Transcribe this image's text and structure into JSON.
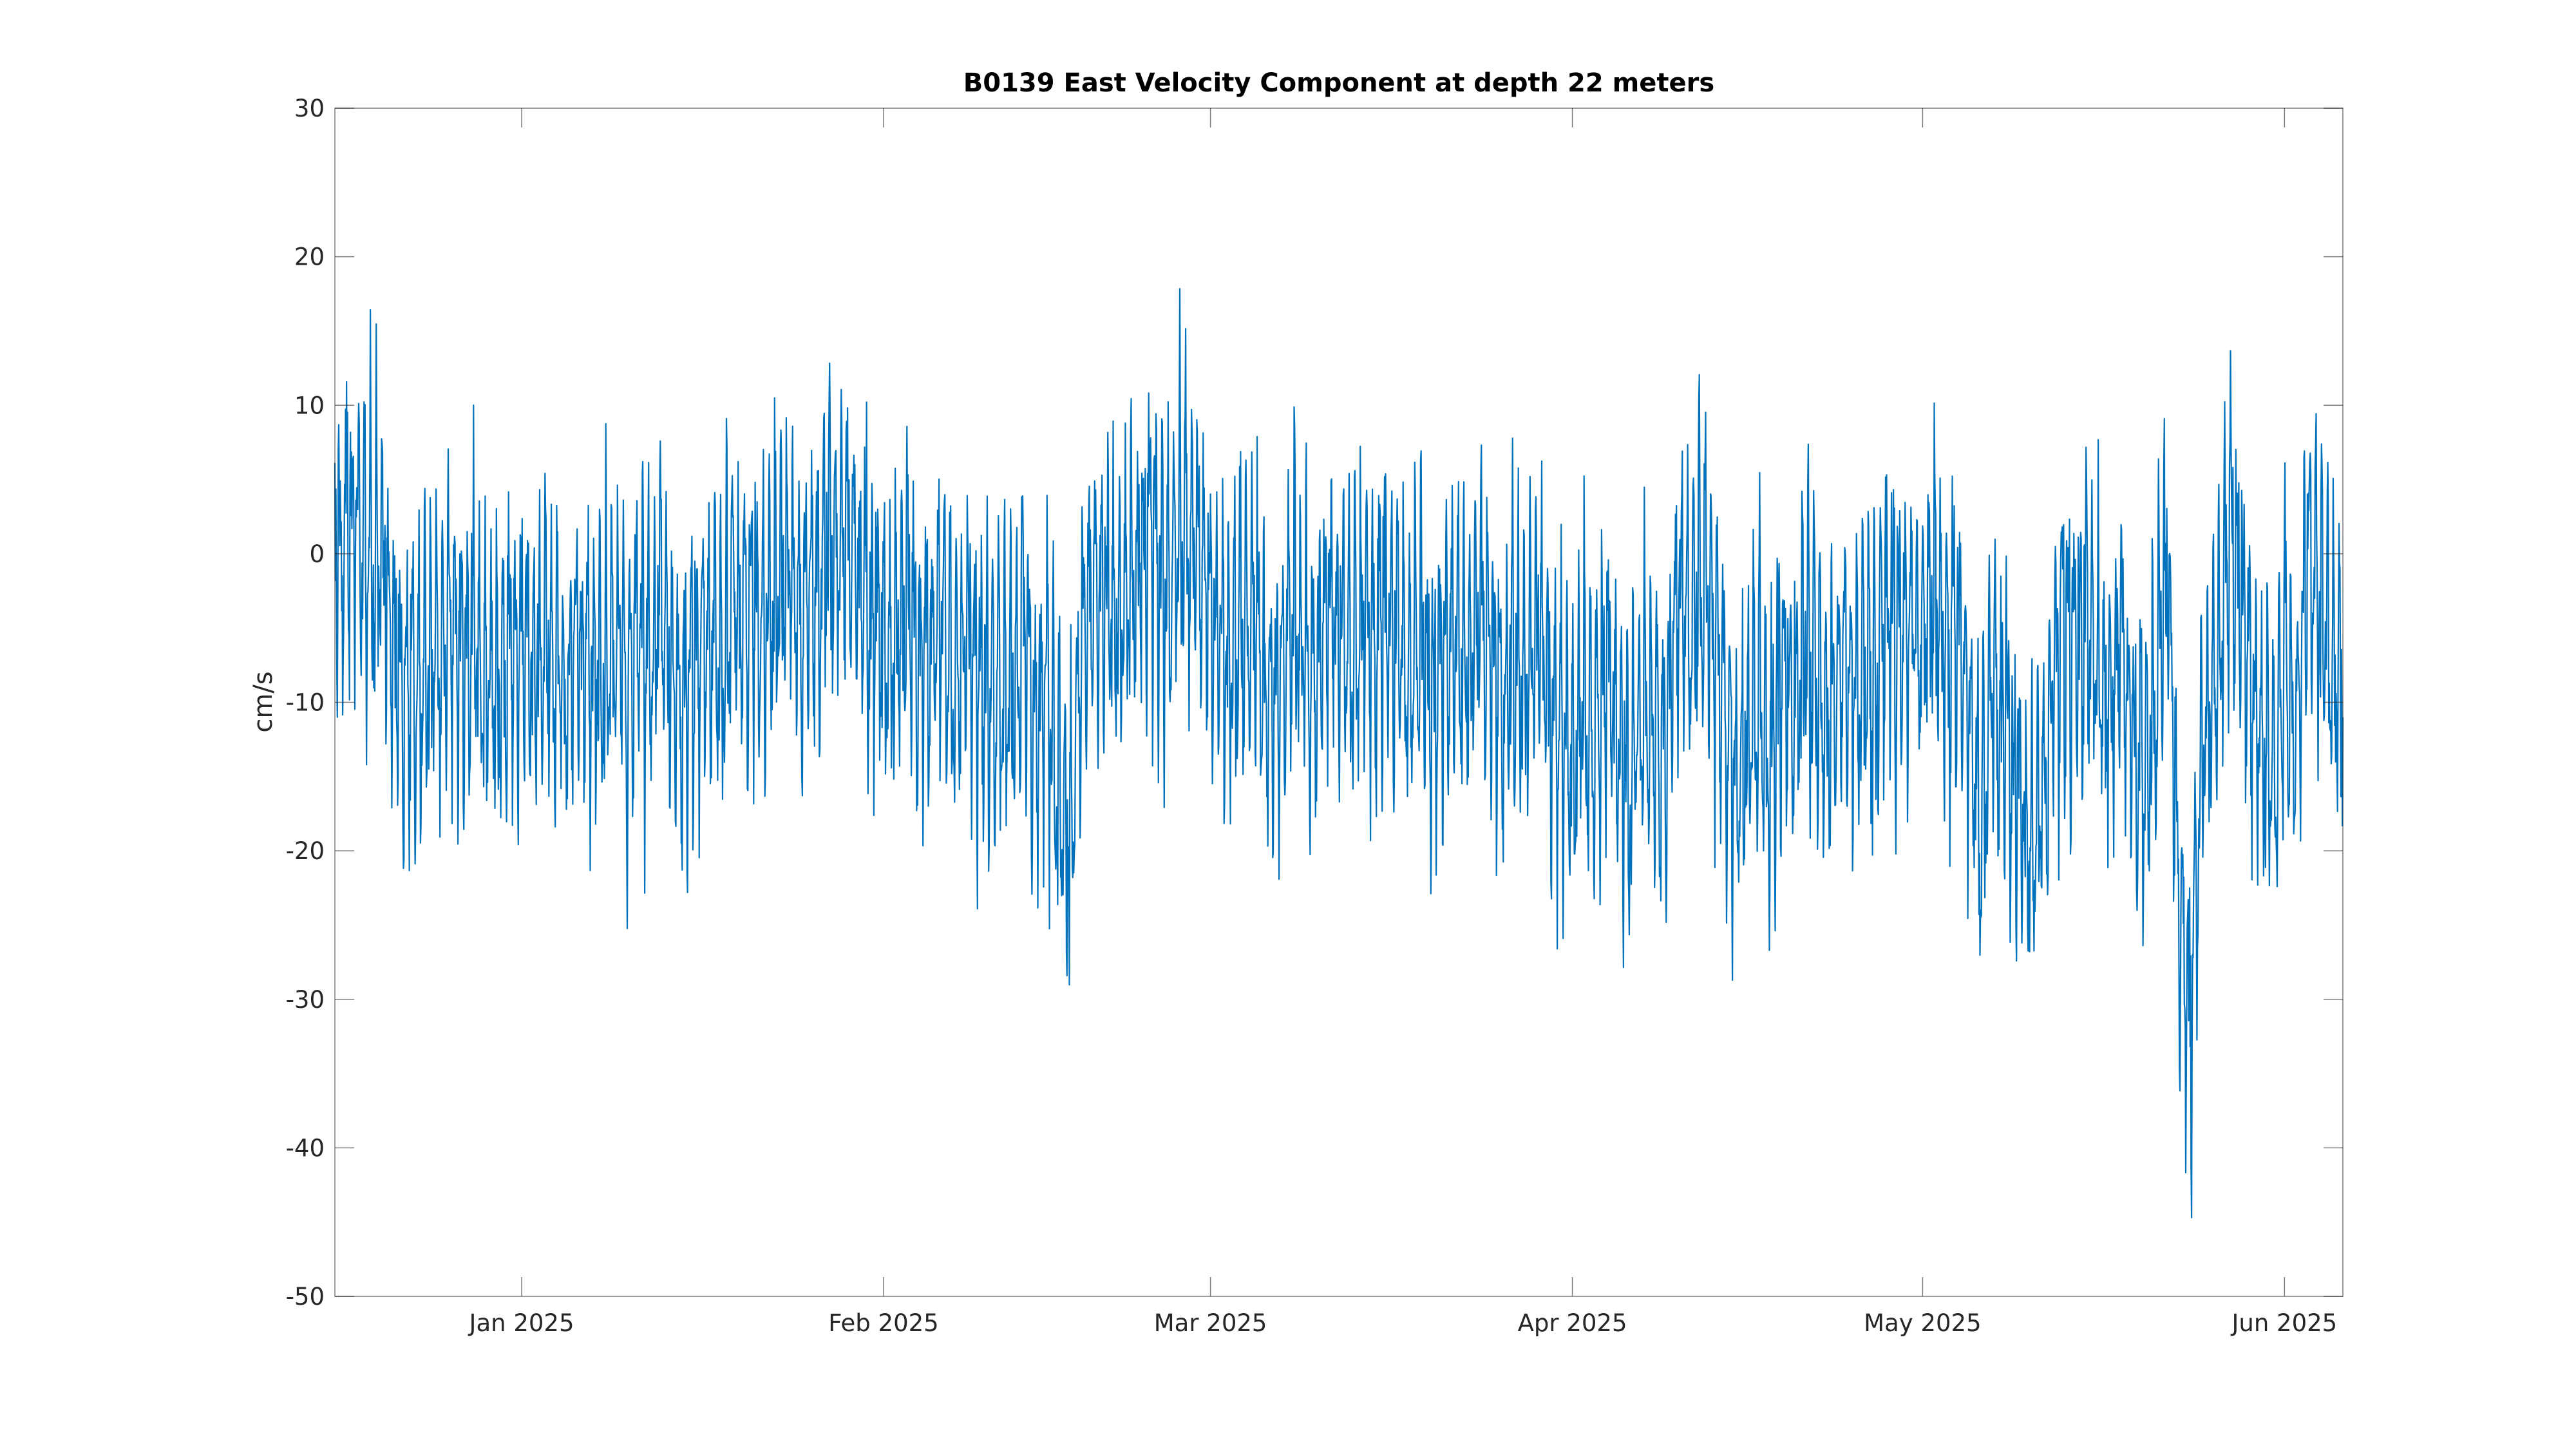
{
  "chart_data": {
    "type": "line",
    "title": "B0139 East Velocity Component at depth 22 meters",
    "xlabel": "",
    "ylabel": "cm/s",
    "x_range": [
      "2024-12-16",
      "2025-06-06"
    ],
    "ylim": [
      -50,
      30
    ],
    "yticks": [
      -50,
      -40,
      -30,
      -20,
      -10,
      0,
      10,
      20,
      30
    ],
    "xticks": [
      {
        "date": "2025-01-01",
        "label": "Jan 2025"
      },
      {
        "date": "2025-02-01",
        "label": "Feb 2025"
      },
      {
        "date": "2025-03-01",
        "label": "Mar 2025"
      },
      {
        "date": "2025-04-01",
        "label": "Apr 2025"
      },
      {
        "date": "2025-05-01",
        "label": "May 2025"
      },
      {
        "date": "2025-06-01",
        "label": "Jun 2025"
      }
    ],
    "grid": false,
    "color": "#0072BD",
    "series": [
      {
        "name": "",
        "points": [
          [
            "2024-12-16",
            0.0
          ],
          [
            "2024-12-17",
            1.5
          ],
          [
            "2024-12-18",
            0.5
          ],
          [
            "2024-12-19",
            -1.0
          ],
          [
            "2024-12-20",
            1.0
          ],
          [
            "2024-12-21",
            -7.0
          ],
          [
            "2024-12-22",
            -10.0
          ],
          [
            "2024-12-23",
            -9.0
          ],
          [
            "2024-12-24",
            -8.0
          ],
          [
            "2024-12-25",
            -7.5
          ],
          [
            "2024-12-26",
            -4.0
          ],
          [
            "2024-12-27",
            -7.5
          ],
          [
            "2024-12-28",
            -5.0
          ],
          [
            "2024-12-29",
            -9.0
          ],
          [
            "2024-12-30",
            -8.0
          ],
          [
            "2024-12-31",
            -6.5
          ],
          [
            "2025-01-01",
            -6.5
          ],
          [
            "2025-01-02",
            -7.5
          ],
          [
            "2025-01-03",
            -5.0
          ],
          [
            "2025-01-04",
            -8.0
          ],
          [
            "2025-01-05",
            -9.0
          ],
          [
            "2025-01-06",
            -5.0
          ],
          [
            "2025-01-07",
            -6.5
          ],
          [
            "2025-01-08",
            -10.0
          ],
          [
            "2025-01-09",
            -5.0
          ],
          [
            "2025-01-10",
            -9.0
          ],
          [
            "2025-01-11",
            -5.0
          ],
          [
            "2025-01-12",
            -7.5
          ],
          [
            "2025-01-13",
            -3.5
          ],
          [
            "2025-01-14",
            -9.0
          ],
          [
            "2025-01-15",
            -10.0
          ],
          [
            "2025-01-16",
            -8.0
          ],
          [
            "2025-01-17",
            -5.0
          ],
          [
            "2025-01-18",
            -6.5
          ],
          [
            "2025-01-19",
            -2.5
          ],
          [
            "2025-01-20",
            -4.0
          ],
          [
            "2025-01-21",
            -3.0
          ],
          [
            "2025-01-22",
            -5.0
          ],
          [
            "2025-01-23",
            -2.0
          ],
          [
            "2025-01-24",
            0.5
          ],
          [
            "2025-01-25",
            -4.5
          ],
          [
            "2025-01-26",
            -2.5
          ],
          [
            "2025-01-27",
            0.0
          ],
          [
            "2025-01-28",
            -0.5
          ],
          [
            "2025-01-29",
            1.0
          ],
          [
            "2025-01-30",
            -1.5
          ],
          [
            "2025-01-31",
            -3.5
          ],
          [
            "2025-02-01",
            -5.0
          ],
          [
            "2025-02-02",
            -8.0
          ],
          [
            "2025-02-03",
            -2.5
          ],
          [
            "2025-02-04",
            -6.0
          ],
          [
            "2025-02-05",
            -7.5
          ],
          [
            "2025-02-06",
            -4.0
          ],
          [
            "2025-02-07",
            -9.0
          ],
          [
            "2025-02-08",
            -3.0
          ],
          [
            "2025-02-09",
            -8.0
          ],
          [
            "2025-02-10",
            -10.0
          ],
          [
            "2025-02-11",
            -7.5
          ],
          [
            "2025-02-12",
            -9.0
          ],
          [
            "2025-02-13",
            -5.0
          ],
          [
            "2025-02-14",
            -12.0
          ],
          [
            "2025-02-15",
            -9.0
          ],
          [
            "2025-02-16",
            -15.0
          ],
          [
            "2025-02-17",
            -20.0
          ],
          [
            "2025-02-18",
            -6.0
          ],
          [
            "2025-02-19",
            -2.5
          ],
          [
            "2025-02-20",
            -4.0
          ],
          [
            "2025-02-21",
            -5.0
          ],
          [
            "2025-02-22",
            -3.0
          ],
          [
            "2025-02-23",
            -1.0
          ],
          [
            "2025-02-24",
            1.0
          ],
          [
            "2025-02-25",
            -2.0
          ],
          [
            "2025-02-26",
            0.5
          ],
          [
            "2025-02-27",
            2.0
          ],
          [
            "2025-02-28",
            -1.0
          ],
          [
            "2025-03-01",
            -4.0
          ],
          [
            "2025-03-02",
            -6.0
          ],
          [
            "2025-03-03",
            -8.0
          ],
          [
            "2025-03-04",
            -3.0
          ],
          [
            "2025-03-05",
            -5.0
          ],
          [
            "2025-03-06",
            -10.0
          ],
          [
            "2025-03-07",
            -8.0
          ],
          [
            "2025-03-08",
            -4.0
          ],
          [
            "2025-03-09",
            -6.0
          ],
          [
            "2025-03-10",
            -9.0
          ],
          [
            "2025-03-11",
            -3.0
          ],
          [
            "2025-03-12",
            -5.0
          ],
          [
            "2025-03-13",
            -7.5
          ],
          [
            "2025-03-14",
            -4.0
          ],
          [
            "2025-03-15",
            -6.0
          ],
          [
            "2025-03-16",
            -2.5
          ],
          [
            "2025-03-17",
            -6.0
          ],
          [
            "2025-03-18",
            -9.0
          ],
          [
            "2025-03-19",
            -5.0
          ],
          [
            "2025-03-20",
            -10.0
          ],
          [
            "2025-03-21",
            -7.5
          ],
          [
            "2025-03-22",
            -4.0
          ],
          [
            "2025-03-23",
            -9.0
          ],
          [
            "2025-03-24",
            -3.0
          ],
          [
            "2025-03-25",
            -7.5
          ],
          [
            "2025-03-26",
            -10.0
          ],
          [
            "2025-03-27",
            -6.0
          ],
          [
            "2025-03-28",
            -8.0
          ],
          [
            "2025-03-29",
            -4.0
          ],
          [
            "2025-03-30",
            -9.0
          ],
          [
            "2025-03-31",
            -12.0
          ],
          [
            "2025-04-01",
            -15.0
          ],
          [
            "2025-04-02",
            -10.0
          ],
          [
            "2025-04-03",
            -13.0
          ],
          [
            "2025-04-04",
            -8.0
          ],
          [
            "2025-04-05",
            -12.0
          ],
          [
            "2025-04-06",
            -15.0
          ],
          [
            "2025-04-07",
            -10.0
          ],
          [
            "2025-04-08",
            -12.0
          ],
          [
            "2025-04-09",
            -14.0
          ],
          [
            "2025-04-10",
            -2.0
          ],
          [
            "2025-04-11",
            -5.0
          ],
          [
            "2025-04-12",
            -1.0
          ],
          [
            "2025-04-13",
            -3.0
          ],
          [
            "2025-04-14",
            -11.0
          ],
          [
            "2025-04-15",
            -15.0
          ],
          [
            "2025-04-16",
            -13.0
          ],
          [
            "2025-04-17",
            -9.0
          ],
          [
            "2025-04-18",
            -15.0
          ],
          [
            "2025-04-19",
            -7.5
          ],
          [
            "2025-04-20",
            -10.0
          ],
          [
            "2025-04-21",
            -6.0
          ],
          [
            "2025-04-22",
            -9.0
          ],
          [
            "2025-04-23",
            -11.0
          ],
          [
            "2025-04-24",
            -7.5
          ],
          [
            "2025-04-25",
            -10.0
          ],
          [
            "2025-04-26",
            -6.0
          ],
          [
            "2025-04-27",
            -9.0
          ],
          [
            "2025-04-28",
            -3.0
          ],
          [
            "2025-04-29",
            -6.5
          ],
          [
            "2025-04-30",
            -4.0
          ],
          [
            "2025-05-01",
            -5.0
          ],
          [
            "2025-05-02",
            -3.0
          ],
          [
            "2025-05-03",
            -7.0
          ],
          [
            "2025-05-04",
            -5.0
          ],
          [
            "2025-05-05",
            -12.0
          ],
          [
            "2025-05-06",
            -18.0
          ],
          [
            "2025-05-07",
            -9.0
          ],
          [
            "2025-05-08",
            -12.0
          ],
          [
            "2025-05-09",
            -15.0
          ],
          [
            "2025-05-10",
            -20.0
          ],
          [
            "2025-05-11",
            -18.0
          ],
          [
            "2025-05-12",
            -10.0
          ],
          [
            "2025-05-13",
            -5.0
          ],
          [
            "2025-05-14",
            -6.5
          ],
          [
            "2025-05-15",
            -4.0
          ],
          [
            "2025-05-16",
            -8.0
          ],
          [
            "2025-05-17",
            -10.0
          ],
          [
            "2025-05-18",
            -5.0
          ],
          [
            "2025-05-19",
            -12.0
          ],
          [
            "2025-05-20",
            -15.0
          ],
          [
            "2025-05-21",
            -10.0
          ],
          [
            "2025-05-22",
            -1.0
          ],
          [
            "2025-05-23",
            -25.0
          ],
          [
            "2025-05-24",
            -30.0
          ],
          [
            "2025-05-25",
            -12.0
          ],
          [
            "2025-05-26",
            -8.0
          ],
          [
            "2025-05-27",
            0.0
          ],
          [
            "2025-05-28",
            -1.0
          ],
          [
            "2025-05-29",
            -8.0
          ],
          [
            "2025-05-30",
            -12.0
          ],
          [
            "2025-05-31",
            -15.0
          ],
          [
            "2025-06-01",
            -6.5
          ],
          [
            "2025-06-02",
            -14.0
          ],
          [
            "2025-06-03",
            2.0
          ],
          [
            "2025-06-04",
            -4.0
          ],
          [
            "2025-06-05",
            -6.0
          ],
          [
            "2025-06-06",
            -11.0
          ]
        ]
      }
    ]
  }
}
